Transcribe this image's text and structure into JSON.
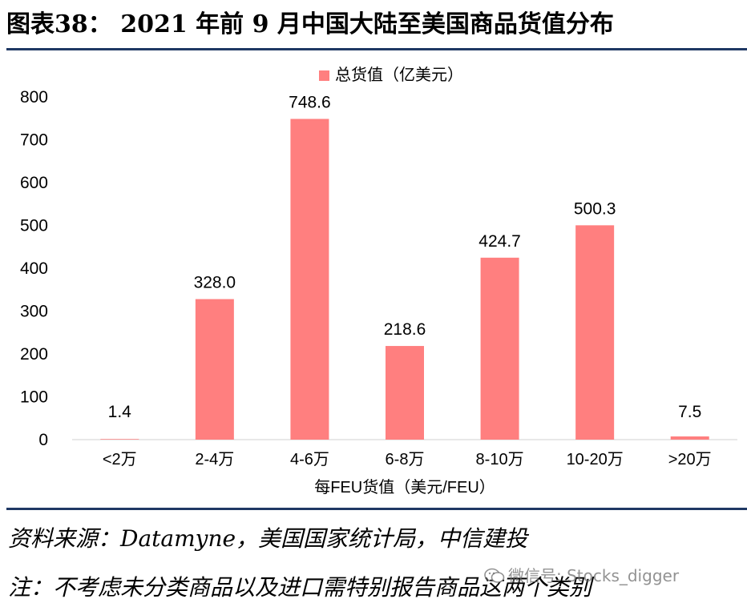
{
  "title": "图表38：  2021 年前 9 月中国大陆至美国商品货值分布",
  "chart_data": {
    "type": "bar",
    "categories": [
      "<2万",
      "2-4万",
      "4-6万",
      "6-8万",
      "8-10万",
      "10-20万",
      ">20万"
    ],
    "series": [
      {
        "name": "总货值（亿美元）",
        "values": [
          1.4,
          328.0,
          748.6,
          218.6,
          424.7,
          500.3,
          7.5
        ],
        "labels": [
          "1.4",
          "328.0",
          "748.6",
          "218.6",
          "424.7",
          "500.3",
          "7.5"
        ],
        "color": "#ff7f7f"
      }
    ],
    "xlabel": "每FEU货值（美元/FEU）",
    "ylabel": "",
    "ylim": [
      0,
      800
    ],
    "yticks": [
      0,
      100,
      200,
      300,
      400,
      500,
      600,
      700,
      800
    ],
    "legend_position": "top-center",
    "grid": false
  },
  "source_note": "资料来源：Datamyne，美国国家统计局，中信建投",
  "remark_note": "注：不考虑未分类商品以及进口需特别报告商品这两个类别",
  "watermark": "微信号: Stocks_digger",
  "colors": {
    "rule": "#1f3864",
    "bar": "#ff7f7f"
  }
}
